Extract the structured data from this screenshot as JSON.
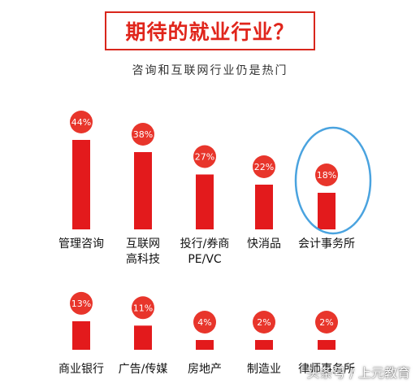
{
  "header": {
    "title": "期待的就业行业？",
    "subtitle": "咨询和互联网行业仍是热门"
  },
  "watermark": "头条号 / 上元教育",
  "colors": {
    "bar": "#e31a1c",
    "circle": "#e8352b",
    "label_text": "#111111",
    "highlight_ellipse": "#4aa3df",
    "title": "#e0251b"
  },
  "chart_data": [
    {
      "type": "bar",
      "categories": [
        "管理咨询",
        "互联网\n高科技",
        "投行/券商\nPE/VC",
        "快消品",
        "会计事务所"
      ],
      "values": [
        44,
        38,
        27,
        22,
        18
      ],
      "value_labels": [
        "44%",
        "38%",
        "27%",
        "22%",
        "18%"
      ],
      "highlighted": "会计事务所",
      "unit": "%"
    },
    {
      "type": "bar",
      "categories": [
        "商业银行",
        "广告/传媒",
        "房地产",
        "制造业",
        "律师事务所"
      ],
      "values": [
        13,
        11,
        4,
        2,
        2
      ],
      "value_labels": [
        "13%",
        "11%",
        "4%",
        "2%",
        "2%"
      ],
      "unit": "%"
    }
  ]
}
